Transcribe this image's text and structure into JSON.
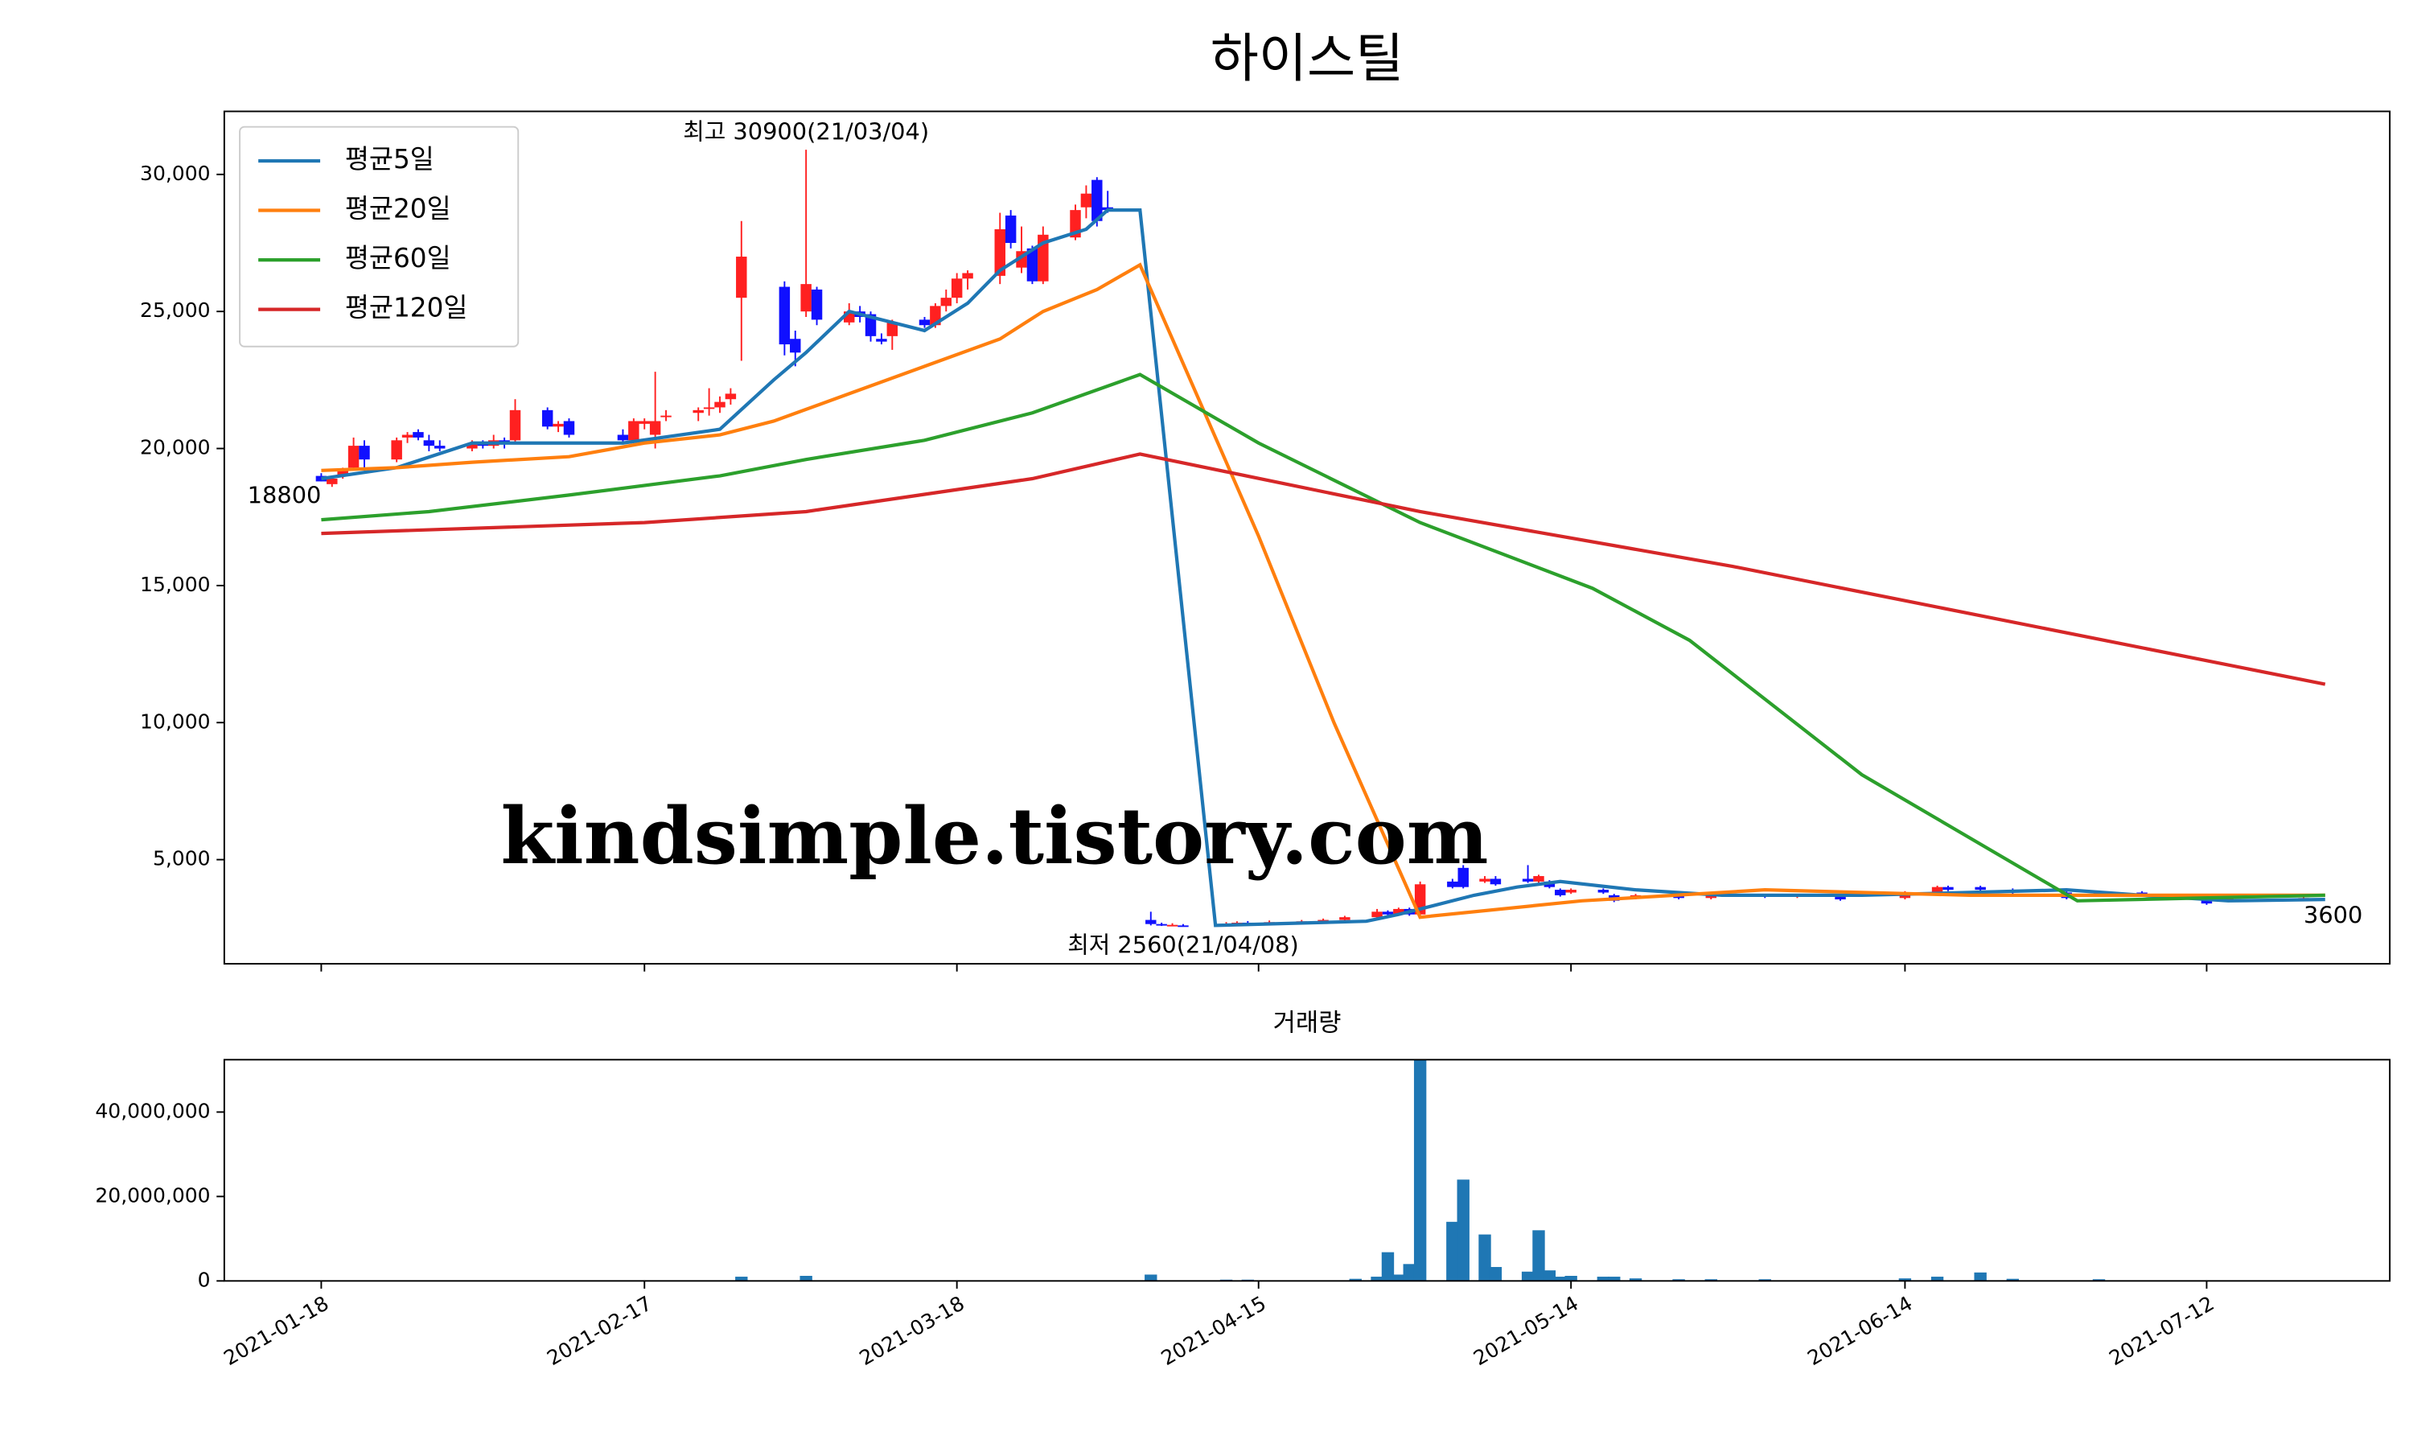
{
  "chart_data": [
    {
      "type": "candlestick",
      "title": "하이스틸",
      "xlim": [
        "2021-01-09",
        "2021-07-29"
      ],
      "ylim": [
        1200,
        32300
      ],
      "yticks": [
        {
          "value": 5000,
          "label": "5,000"
        },
        {
          "value": 10000,
          "label": "10,000"
        },
        {
          "value": 15000,
          "label": "15,000"
        },
        {
          "value": 20000,
          "label": "20,000"
        },
        {
          "value": 25000,
          "label": "25,000"
        },
        {
          "value": 30000,
          "label": "30,000"
        }
      ],
      "up_color": "#ff2020",
      "down_color": "#1010ff",
      "legend": "upper left",
      "candles": {
        "dates": [
          "2021-01-18",
          "2021-01-19",
          "2021-01-20",
          "2021-01-21",
          "2021-01-22",
          "2021-01-25",
          "2021-01-26",
          "2021-01-27",
          "2021-01-28",
          "2021-01-29",
          "2021-02-01",
          "2021-02-02",
          "2021-02-03",
          "2021-02-04",
          "2021-02-05",
          "2021-02-08",
          "2021-02-09",
          "2021-02-10",
          "2021-02-15",
          "2021-02-16",
          "2021-02-17",
          "2021-02-18",
          "2021-02-19",
          "2021-02-22",
          "2021-02-23",
          "2021-02-24",
          "2021-02-25",
          "2021-02-26",
          "2021-03-02",
          "2021-03-03",
          "2021-03-04",
          "2021-03-05",
          "2021-03-08",
          "2021-03-09",
          "2021-03-10",
          "2021-03-11",
          "2021-03-12",
          "2021-03-15",
          "2021-03-16",
          "2021-03-17",
          "2021-03-18",
          "2021-03-19",
          "2021-03-22",
          "2021-03-23",
          "2021-03-24",
          "2021-03-25",
          "2021-03-26",
          "2021-03-29",
          "2021-03-30",
          "2021-03-31",
          "2021-04-01",
          "2021-04-05",
          "2021-04-06",
          "2021-04-07",
          "2021-04-08",
          "2021-04-12",
          "2021-04-13",
          "2021-04-14",
          "2021-04-16",
          "2021-04-19",
          "2021-04-21",
          "2021-04-23",
          "2021-04-26",
          "2021-04-27",
          "2021-04-28",
          "2021-04-29",
          "2021-04-30",
          "2021-05-03",
          "2021-05-04",
          "2021-05-06",
          "2021-05-07",
          "2021-05-10",
          "2021-05-11",
          "2021-05-12",
          "2021-05-13",
          "2021-05-14",
          "2021-05-17",
          "2021-05-18",
          "2021-05-20",
          "2021-05-24",
          "2021-05-27",
          "2021-06-01",
          "2021-06-04",
          "2021-06-08",
          "2021-06-14",
          "2021-06-17",
          "2021-06-18",
          "2021-06-21",
          "2021-06-24",
          "2021-06-29",
          "2021-07-02",
          "2021-07-06",
          "2021-07-12",
          "2021-07-14",
          "2021-07-21"
        ],
        "open": [
          19000,
          18700,
          19000,
          19300,
          20100,
          19600,
          20400,
          20600,
          20300,
          20100,
          20000,
          20200,
          20100,
          20300,
          20300,
          21400,
          20800,
          21000,
          20500,
          20300,
          20900,
          20500,
          21200,
          21300,
          21500,
          21500,
          21800,
          25500,
          25900,
          24000,
          25000,
          25800,
          24600,
          25000,
          24900,
          24000,
          24100,
          24700,
          24500,
          25200,
          25500,
          26200,
          26300,
          28500,
          26600,
          27300,
          26100,
          27700,
          28800,
          29800,
          28800,
          2800,
          2650,
          2620,
          2600,
          2620,
          2650,
          2700,
          2700,
          2720,
          2760,
          2800,
          2900,
          3100,
          3000,
          3200,
          3000,
          4200,
          4700,
          4200,
          4300,
          4300,
          4200,
          4200,
          3900,
          3800,
          3900,
          3700,
          3600,
          3700,
          3600,
          3700,
          3650,
          3650,
          3600,
          3800,
          4000,
          4000,
          3900,
          3800,
          3700,
          3800,
          3600,
          3500,
          3550
        ],
        "high": [
          19100,
          18900,
          19300,
          20400,
          20300,
          20400,
          20600,
          20700,
          20500,
          20300,
          20300,
          20300,
          20500,
          20400,
          21800,
          21500,
          21000,
          21100,
          20700,
          21100,
          21100,
          22800,
          21400,
          21500,
          22200,
          21900,
          22200,
          28300,
          26100,
          24300,
          30900,
          25900,
          25300,
          25200,
          25000,
          24200,
          24700,
          24800,
          25300,
          25800,
          26400,
          26500,
          28600,
          28700,
          28100,
          27400,
          28100,
          28900,
          29600,
          29900,
          29400,
          3100,
          2700,
          2680,
          2650,
          2720,
          2750,
          2760,
          2780,
          2800,
          2850,
          2950,
          3200,
          3150,
          3250,
          3250,
          4200,
          4300,
          4800,
          4400,
          4400,
          4800,
          4450,
          4250,
          3950,
          3950,
          3950,
          3750,
          3750,
          3750,
          3750,
          3750,
          3750,
          3700,
          3850,
          4050,
          4050,
          4050,
          3950,
          3850,
          3850,
          3850,
          3650,
          3650,
          3650
        ],
        "low": [
          18800,
          18600,
          18900,
          19200,
          19200,
          19500,
          20200,
          20300,
          19900,
          19900,
          19900,
          20000,
          20000,
          20000,
          20200,
          20700,
          20600,
          20400,
          20200,
          20300,
          20700,
          20000,
          21000,
          21000,
          21200,
          21300,
          21600,
          23200,
          23400,
          23000,
          24800,
          24500,
          24500,
          24600,
          23900,
          23800,
          23600,
          24400,
          24400,
          25000,
          25300,
          25800,
          26000,
          27300,
          26400,
          26000,
          26000,
          27600,
          28400,
          28100,
          28600,
          2600,
          2580,
          2590,
          2560,
          2600,
          2630,
          2660,
          2680,
          2700,
          2740,
          2780,
          2880,
          2950,
          2980,
          2950,
          2900,
          3950,
          3950,
          4150,
          4050,
          4150,
          4150,
          3950,
          3650,
          3750,
          3750,
          3450,
          3550,
          3550,
          3550,
          3600,
          3600,
          3500,
          3550,
          3750,
          3850,
          3850,
          3750,
          3550,
          3650,
          3650,
          3350,
          3450,
          3500
        ],
        "close": [
          18800,
          18900,
          19200,
          20100,
          19600,
          20300,
          20500,
          20400,
          20100,
          20000,
          20200,
          20100,
          20300,
          20200,
          21400,
          20800,
          20900,
          20500,
          20300,
          21000,
          21000,
          21000,
          21200,
          21400,
          21500,
          21700,
          22000,
          27000,
          23800,
          23500,
          26000,
          24700,
          25000,
          24800,
          24100,
          23900,
          24600,
          24500,
          25200,
          25500,
          26200,
          26400,
          28000,
          27500,
          27200,
          26100,
          27800,
          28700,
          29300,
          28300,
          28700,
          2650,
          2600,
          2620,
          2580,
          2650,
          2700,
          2680,
          2720,
          2750,
          2800,
          2900,
          3100,
          3000,
          3200,
          3000,
          4100,
          4000,
          4000,
          4300,
          4100,
          4200,
          4400,
          4000,
          3700,
          3900,
          3800,
          3500,
          3700,
          3600,
          3700,
          3650,
          3700,
          3550,
          3800,
          4000,
          3900,
          3900,
          3800,
          3600,
          3800,
          3700,
          3400,
          3600,
          3600
        ]
      },
      "series": [
        {
          "name": "평균5일",
          "color": "#1f77b4",
          "x": [
            "2021-01-18",
            "2021-01-25",
            "2021-02-01",
            "2021-02-15",
            "2021-02-24",
            "2021-03-01",
            "2021-03-04",
            "2021-03-08",
            "2021-03-10",
            "2021-03-15",
            "2021-03-19",
            "2021-03-22",
            "2021-03-26",
            "2021-03-30",
            "2021-04-01",
            "2021-04-04",
            "2021-04-11",
            "2021-04-25",
            "2021-04-28",
            "2021-05-01",
            "2021-05-05",
            "2021-05-09",
            "2021-05-13",
            "2021-05-20",
            "2021-05-28",
            "2021-06-10",
            "2021-06-20",
            "2021-06-29",
            "2021-07-06",
            "2021-07-14",
            "2021-07-23"
          ],
          "values": [
            18900,
            19300,
            20200,
            20200,
            20700,
            22500,
            23500,
            25000,
            24800,
            24300,
            25300,
            26500,
            27500,
            28000,
            28700,
            28700,
            2600,
            2750,
            3000,
            3300,
            3700,
            4000,
            4200,
            3900,
            3700,
            3700,
            3800,
            3900,
            3700,
            3500,
            3550
          ]
        },
        {
          "name": "평균20일",
          "color": "#ff7f0e",
          "x": [
            "2021-01-18",
            "2021-01-25",
            "2021-02-01",
            "2021-02-10",
            "2021-02-17",
            "2021-02-24",
            "2021-03-01",
            "2021-03-08",
            "2021-03-15",
            "2021-03-22",
            "2021-03-26",
            "2021-03-31",
            "2021-04-04",
            "2021-04-15",
            "2021-04-22",
            "2021-04-30",
            "2021-05-15",
            "2021-06-01",
            "2021-06-20",
            "2021-07-23"
          ],
          "values": [
            19200,
            19300,
            19500,
            19700,
            20200,
            20500,
            21000,
            22000,
            23000,
            24000,
            25000,
            25800,
            26700,
            16800,
            10000,
            2900,
            3500,
            3900,
            3700,
            3700
          ]
        },
        {
          "name": "평균60일",
          "color": "#2ca02c",
          "x": [
            "2021-01-18",
            "2021-01-28",
            "2021-02-10",
            "2021-02-24",
            "2021-03-04",
            "2021-03-15",
            "2021-03-25",
            "2021-04-04",
            "2021-04-15",
            "2021-04-30",
            "2021-05-16",
            "2021-05-25",
            "2021-06-10",
            "2021-06-30",
            "2021-07-23"
          ],
          "values": [
            17400,
            17700,
            18300,
            19000,
            19600,
            20300,
            21300,
            22700,
            20200,
            17300,
            14900,
            13000,
            8100,
            3500,
            3700
          ]
        },
        {
          "name": "평균120일",
          "color": "#d62728",
          "x": [
            "2021-01-18",
            "2021-02-17",
            "2021-03-04",
            "2021-03-25",
            "2021-04-04",
            "2021-04-30",
            "2021-05-29",
            "2021-07-23"
          ],
          "values": [
            16900,
            17300,
            17700,
            18900,
            19800,
            17700,
            15700,
            11400
          ]
        }
      ],
      "annotations": [
        {
          "text": "최고 30900(21/03/04)",
          "x": "2021-03-04",
          "y": 30900,
          "color": "#ff0000"
        },
        {
          "text": "최저 2560(21/04/08)",
          "x": "2021-04-08",
          "y": 2560,
          "color": "#0000ff"
        },
        {
          "text": "18800",
          "x": "2021-01-18",
          "y": 18800,
          "color": "#000000"
        },
        {
          "text": "3600",
          "x": "2021-07-21",
          "y": 3600,
          "color": "#000000"
        }
      ],
      "watermark": "kindsimple.tistory.com"
    },
    {
      "type": "bar",
      "title": "거래량",
      "color": "#1f77b4",
      "xlim": [
        "2021-01-09",
        "2021-07-29"
      ],
      "ylim": [
        0,
        52400000
      ],
      "yticks": [
        0,
        {
          "value": 20000000,
          "label": "20,000,000"
        },
        {
          "value": 40000000,
          "label": "40,000,000"
        }
      ],
      "xticks": [
        "2021-01-18",
        "2021-02-17",
        "2021-03-18",
        "2021-04-15",
        "2021-05-14",
        "2021-06-14",
        "2021-07-12"
      ],
      "x": [
        "2021-02-26",
        "2021-03-04",
        "2021-04-05",
        "2021-04-12",
        "2021-04-14",
        "2021-04-24",
        "2021-04-26",
        "2021-04-27",
        "2021-04-28",
        "2021-04-29",
        "2021-04-30",
        "2021-05-03",
        "2021-05-04",
        "2021-05-06",
        "2021-05-07",
        "2021-05-10",
        "2021-05-11",
        "2021-05-12",
        "2021-05-13",
        "2021-05-14",
        "2021-05-17",
        "2021-05-18",
        "2021-05-20",
        "2021-05-24",
        "2021-05-27",
        "2021-06-01",
        "2021-06-14",
        "2021-06-17",
        "2021-06-21",
        "2021-06-24",
        "2021-07-02"
      ],
      "values": [
        1000000,
        1200000,
        1500000,
        300000,
        300000,
        500000,
        1000000,
        6800000,
        1500000,
        4000000,
        52500000,
        14000000,
        24000000,
        11000000,
        3300000,
        2200000,
        12000000,
        2500000,
        1000000,
        1200000,
        1000000,
        1000000,
        600000,
        400000,
        400000,
        400000,
        600000,
        1000000,
        2000000,
        500000,
        400000
      ]
    }
  ]
}
